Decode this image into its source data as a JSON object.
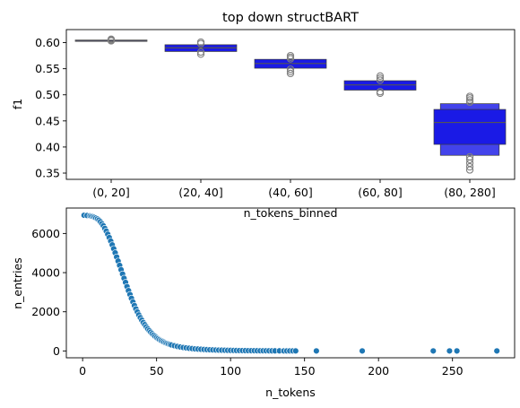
{
  "chart_data": [
    {
      "type": "boxen",
      "title": "top down structBART",
      "xlabel": "n_tokens_binned",
      "ylabel": "f1",
      "ylim": [
        0.338,
        0.625
      ],
      "yticks": [
        0.35,
        0.4,
        0.45,
        0.5,
        0.55,
        0.6
      ],
      "ytick_labels": [
        "0.35",
        "0.40",
        "0.45",
        "0.50",
        "0.55",
        "0.60"
      ],
      "categories": [
        "(0, 20]",
        "(20, 40]",
        "(40, 60]",
        "(60, 80]",
        "(80, 280]"
      ],
      "color": "#1a1ae6",
      "median_color": "#555555",
      "outlier_color": "#808080",
      "groups": [
        {
          "category": "(0, 20]",
          "boxes": [
            [
              0.603,
              0.605
            ]
          ],
          "median": 0.604,
          "outliers": [
            0.6035,
            0.605,
            0.6065
          ]
        },
        {
          "category": "(20, 40]",
          "boxes": [
            [
              0.583,
              0.596
            ]
          ],
          "median": 0.59,
          "outliers": [
            0.578,
            0.582,
            0.598,
            0.601
          ]
        },
        {
          "category": "(40, 60]",
          "boxes": [
            [
              0.551,
              0.568
            ]
          ],
          "median": 0.56,
          "outliers": [
            0.541,
            0.545,
            0.549,
            0.569,
            0.572,
            0.575
          ]
        },
        {
          "category": "(60, 80]",
          "boxes": [
            [
              0.509,
              0.527
            ]
          ],
          "median": 0.519,
          "outliers": [
            0.503,
            0.506,
            0.528,
            0.532,
            0.536
          ]
        },
        {
          "category": "(80, 280]",
          "boxes": [
            [
              0.405,
              0.472
            ],
            [
              0.384,
              0.483
            ]
          ],
          "median": 0.447,
          "outliers": [
            0.356,
            0.362,
            0.369,
            0.376,
            0.381,
            0.486,
            0.49,
            0.494,
            0.497
          ]
        }
      ]
    },
    {
      "type": "scatter",
      "xlabel": "n_tokens",
      "ylabel": "n_entries",
      "xlim": [
        -11,
        292
      ],
      "ylim": [
        -350,
        7300
      ],
      "xticks": [
        0,
        50,
        100,
        150,
        200,
        250
      ],
      "xtick_labels": [
        "0",
        "50",
        "100",
        "150",
        "200",
        "250"
      ],
      "yticks": [
        0,
        2000,
        4000,
        6000
      ],
      "ytick_labels": [
        "0",
        "2000",
        "4000",
        "6000"
      ],
      "color": "#1f77b4",
      "x": [
        1,
        3,
        5,
        6,
        7,
        8,
        9,
        10,
        11,
        12,
        13,
        14,
        15,
        16,
        17,
        18,
        19,
        20,
        21,
        22,
        23,
        24,
        25,
        26,
        27,
        28,
        29,
        30,
        31,
        32,
        33,
        34,
        35,
        36,
        37,
        38,
        39,
        40,
        41,
        42,
        43,
        44,
        45,
        46,
        47,
        48,
        49,
        50,
        51,
        52,
        53,
        54,
        55,
        56,
        57,
        58,
        59,
        60,
        62,
        64,
        66,
        68,
        70,
        72,
        74,
        76,
        78,
        80,
        82,
        84,
        86,
        88,
        90,
        92,
        94,
        96,
        98,
        100,
        102,
        104,
        106,
        108,
        110,
        112,
        114,
        116,
        118,
        120,
        122,
        124,
        126,
        128,
        130,
        133,
        136,
        138,
        140,
        142,
        144,
        158,
        189,
        237,
        248,
        253,
        280
      ],
      "y": [
        6930,
        6920,
        6900,
        6880,
        6860,
        6830,
        6790,
        6740,
        6680,
        6600,
        6500,
        6390,
        6260,
        6120,
        5960,
        5790,
        5610,
        5420,
        5220,
        5010,
        4800,
        4590,
        4370,
        4150,
        3930,
        3710,
        3500,
        3290,
        3080,
        2880,
        2690,
        2500,
        2320,
        2150,
        1990,
        1840,
        1700,
        1570,
        1450,
        1340,
        1230,
        1130,
        1040,
        960,
        880,
        810,
        740,
        680,
        625,
        575,
        530,
        490,
        450,
        415,
        385,
        355,
        330,
        305,
        265,
        230,
        200,
        175,
        155,
        135,
        120,
        105,
        95,
        85,
        75,
        68,
        60,
        54,
        48,
        43,
        39,
        35,
        31,
        28,
        25,
        22,
        20,
        18,
        16,
        14,
        12,
        11,
        10,
        9,
        8,
        7,
        6,
        5,
        4,
        4,
        3,
        3,
        2,
        2,
        2,
        1,
        1,
        1,
        1,
        1,
        1
      ]
    }
  ]
}
